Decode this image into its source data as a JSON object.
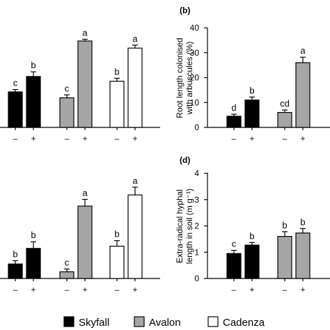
{
  "figure": {
    "legend": [
      {
        "name": "Skyfall",
        "fill": "#000000"
      },
      {
        "name": "Avalon",
        "fill": "#a6a6a6"
      },
      {
        "name": "Cadenza",
        "fill": "#ffffff"
      }
    ]
  },
  "chart_data": [
    {
      "panel": "a",
      "type": "bar",
      "cropped": true,
      "groups": [
        "Skyfall",
        "Avalon",
        "Cadenza"
      ],
      "categories": [
        "–",
        "+"
      ],
      "series": [
        {
          "name": "Skyfall",
          "values": [
            30,
            43
          ],
          "errors": [
            2,
            4
          ],
          "labels": [
            "c",
            "b"
          ]
        },
        {
          "name": "Avalon",
          "values": [
            25,
            73
          ],
          "errors": [
            2.5,
            1.5
          ],
          "labels": [
            "c",
            "a"
          ]
        },
        {
          "name": "Cadenza",
          "values": [
            39,
            67
          ],
          "errors": [
            2.5,
            2.5
          ],
          "labels": [
            "b",
            "a"
          ]
        }
      ],
      "ylim": [
        0,
        100
      ]
    },
    {
      "panel": "b",
      "type": "bar",
      "title": "(b)",
      "groups": [
        "Skyfall",
        "Avalon",
        "Cadenza"
      ],
      "categories": [
        "–",
        "+"
      ],
      "ylabel": [
        "Root length colonised",
        "with arbuscules (%)"
      ],
      "yticks": [
        0,
        10,
        20,
        30,
        40
      ],
      "ylim": [
        0,
        40
      ],
      "series": [
        {
          "name": "Skyfall",
          "values": [
            4.5,
            11
          ],
          "errors": [
            0.8,
            1.2
          ],
          "labels": [
            "d",
            "b"
          ]
        },
        {
          "name": "Avalon",
          "values": [
            6,
            26
          ],
          "errors": [
            1,
            2.2
          ],
          "labels": [
            "cd",
            "a"
          ]
        }
      ]
    },
    {
      "panel": "c",
      "type": "bar",
      "cropped": true,
      "groups": [
        "Skyfall",
        "Avalon",
        "Cadenza"
      ],
      "categories": [
        "–",
        "+"
      ],
      "series": [
        {
          "name": "Skyfall",
          "values": [
            13,
            27
          ],
          "errors": [
            3,
            6
          ],
          "labels": [
            "b",
            "b"
          ]
        },
        {
          "name": "Avalon",
          "values": [
            6,
            65
          ],
          "errors": [
            2.5,
            6
          ],
          "labels": [
            "c",
            "a"
          ]
        },
        {
          "name": "Cadenza",
          "values": [
            29,
            75
          ],
          "errors": [
            5,
            7
          ],
          "labels": [
            "b",
            "a"
          ]
        }
      ],
      "ylim": [
        0,
        100
      ]
    },
    {
      "panel": "d",
      "type": "bar",
      "title": "(d)",
      "groups": [
        "Skyfall",
        "Avalon",
        "Cadenza"
      ],
      "categories": [
        "–",
        "+"
      ],
      "ylabel": [
        "Extra-radical hyphal",
        "length in soil (m g⁻¹)"
      ],
      "yticks": [
        0,
        1,
        2,
        3,
        4
      ],
      "ylim": [
        0,
        4
      ],
      "series": [
        {
          "name": "Skyfall",
          "values": [
            0.95,
            1.27
          ],
          "errors": [
            0.12,
            0.1
          ],
          "labels": [
            "c",
            "b"
          ]
        },
        {
          "name": "Avalon",
          "values": [
            1.6,
            1.73
          ],
          "errors": [
            0.18,
            0.17
          ],
          "labels": [
            "b",
            "b"
          ]
        }
      ]
    }
  ]
}
